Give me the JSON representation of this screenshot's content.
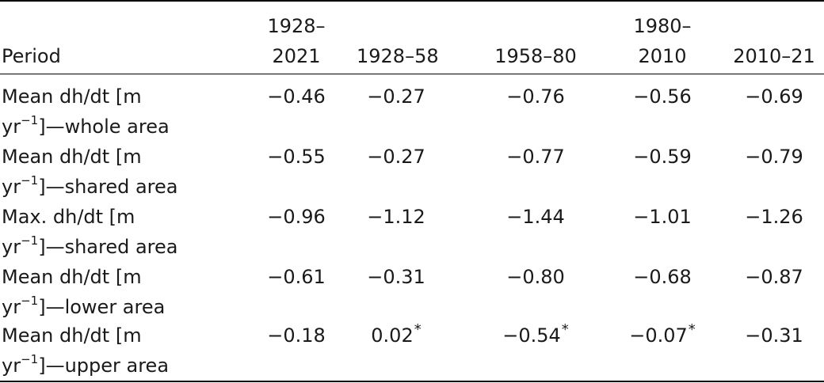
{
  "header": {
    "period_label": "Period",
    "columns": [
      {
        "line1": "1928–",
        "line2": "2021"
      },
      {
        "line1": "",
        "line2": "1928–58"
      },
      {
        "line1": "",
        "line2": "1958–80"
      },
      {
        "line1": "1980–",
        "line2": "2010"
      },
      {
        "line1": "",
        "line2": "2010–21"
      }
    ]
  },
  "rows": [
    {
      "label_a": "Mean dh/dt [m",
      "label_b_pre": "yr",
      "label_b_sup": "−1",
      "label_b_post": "]—whole area",
      "values": [
        "−0.46",
        "−0.27",
        "−0.76",
        "−0.56",
        "−0.69"
      ],
      "stars": [
        "",
        "",
        "",
        "",
        ""
      ]
    },
    {
      "label_a": "Mean dh/dt [m",
      "label_b_pre": "yr",
      "label_b_sup": "−1",
      "label_b_post": "]—shared area",
      "values": [
        "−0.55",
        "−0.27",
        "−0.77",
        "−0.59",
        "−0.79"
      ],
      "stars": [
        "",
        "",
        "",
        "",
        ""
      ]
    },
    {
      "label_a": "Max. dh/dt [m",
      "label_b_pre": "yr",
      "label_b_sup": "−1",
      "label_b_post": "]—shared area",
      "values": [
        "−0.96",
        "−1.12",
        "−1.44",
        "−1.01",
        "−1.26"
      ],
      "stars": [
        "",
        "",
        "",
        "",
        ""
      ]
    },
    {
      "label_a": "Mean dh/dt [m",
      "label_b_pre": "yr",
      "label_b_sup": "−1",
      "label_b_post": "]—lower area",
      "values": [
        "−0.61",
        "−0.31",
        "−0.80",
        "−0.68",
        "−0.87"
      ],
      "stars": [
        "",
        "",
        "",
        "",
        ""
      ]
    },
    {
      "label_a": "Mean dh/dt [m",
      "label_b_pre": "yr",
      "label_b_sup": "−1",
      "label_b_post": "]—upper area",
      "values": [
        "−0.18",
        "0.02",
        "−0.54",
        "−0.07",
        "−0.31"
      ],
      "stars": [
        "",
        "*",
        "*",
        "*",
        ""
      ]
    }
  ]
}
